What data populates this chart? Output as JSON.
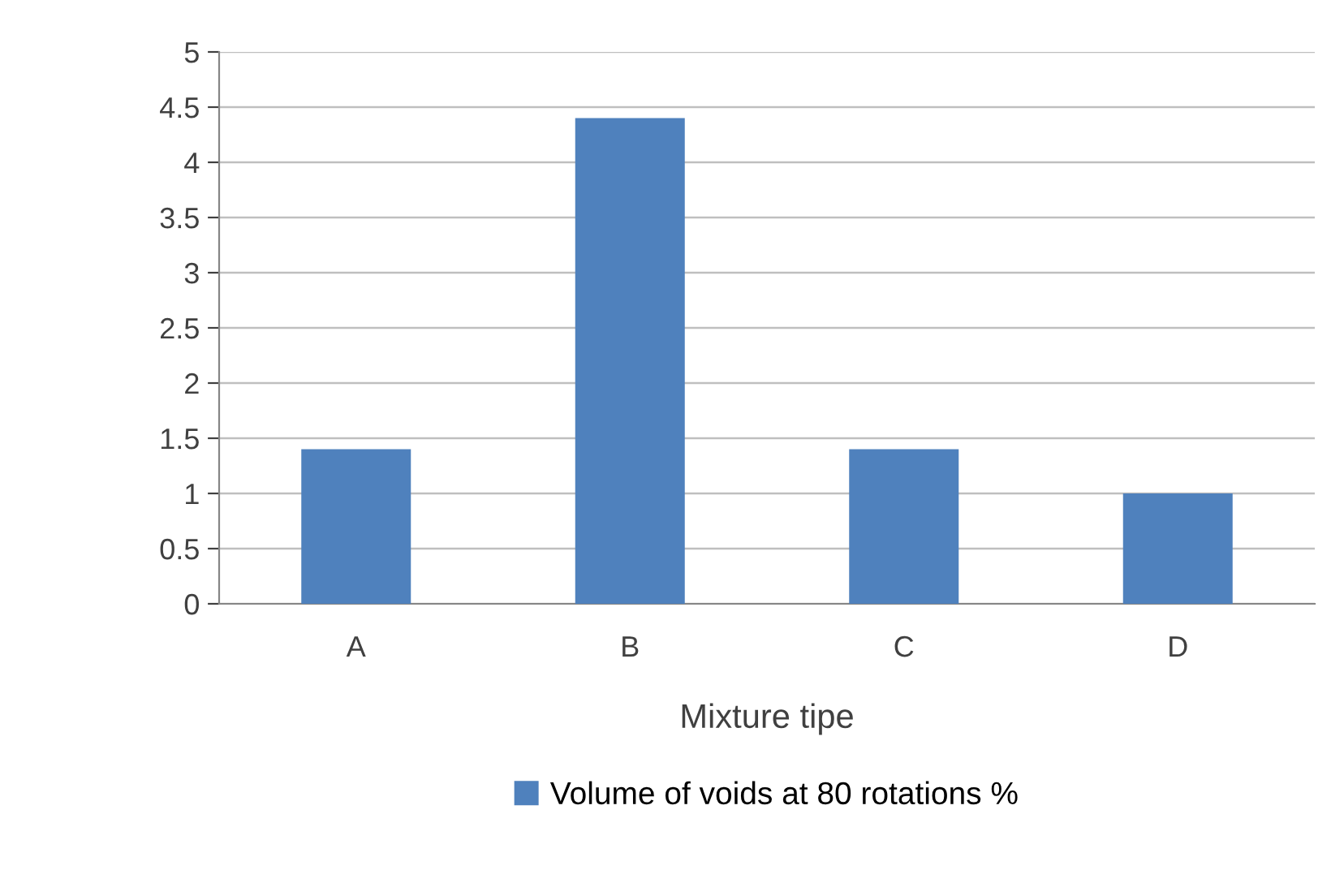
{
  "chart_data": {
    "type": "bar",
    "xlabel": "Mixture tipe",
    "categories": [
      "A",
      "B",
      "C",
      "D"
    ],
    "series": [
      {
        "name": "Volume of voids at 80 rotations %",
        "color": "#4f81bd",
        "values": [
          1.4,
          4.4,
          1.4,
          1.0
        ]
      }
    ],
    "ylim": [
      0,
      5
    ],
    "yticks": [
      0,
      0.5,
      1,
      1.5,
      2,
      2.5,
      3,
      3.5,
      4,
      4.5,
      5
    ],
    "grid": "y",
    "legend": "bottom"
  }
}
